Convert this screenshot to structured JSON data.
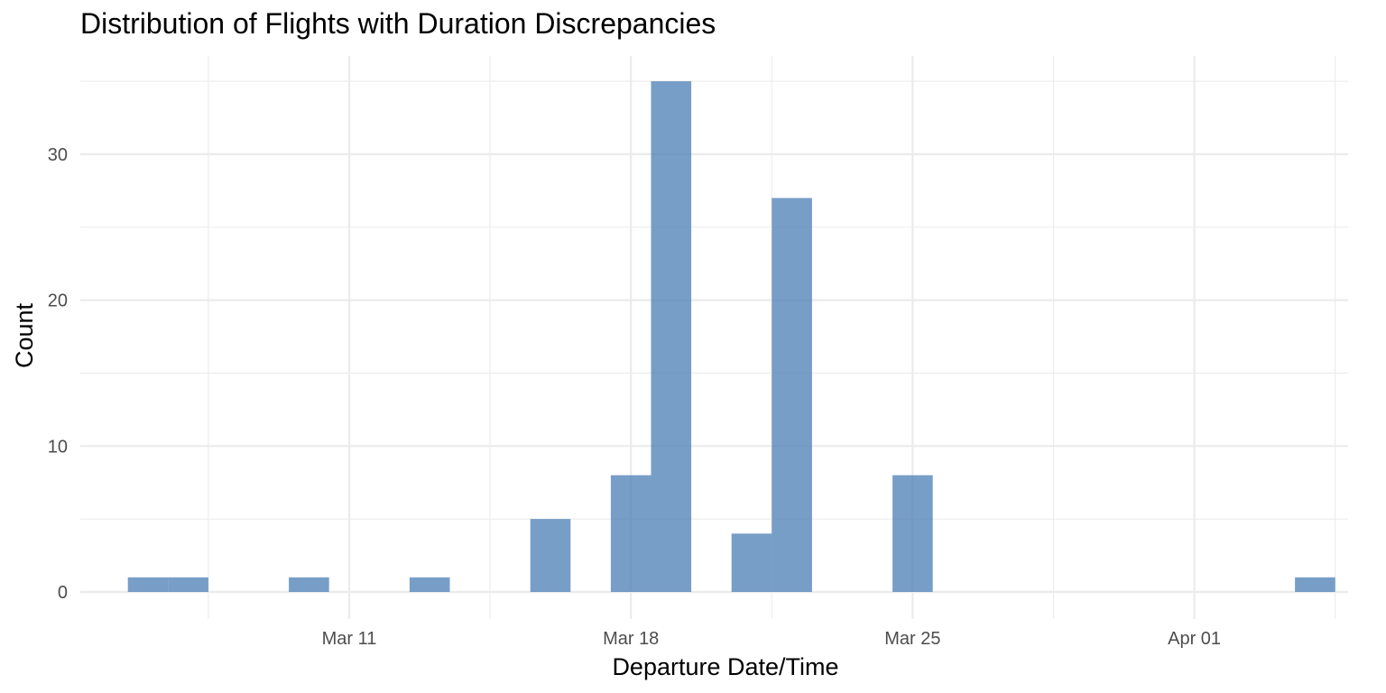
{
  "chart_data": {
    "type": "bar",
    "title": "Distribution of Flights with Duration Discrepancies",
    "xlabel": "Departure Date/Time",
    "ylabel": "Count",
    "bar_color": "#4a7db4",
    "bar_opacity": 0.75,
    "ylim": [
      0,
      35
    ],
    "yticks": [
      0,
      10,
      20,
      30
    ],
    "xticks": [
      "Mar 11",
      "Mar 18",
      "Mar 25",
      "Apr 01"
    ],
    "grid": true,
    "legend": "none",
    "bins": [
      {
        "start": "2024-03-05 12:00",
        "end": "2024-03-06 12:00",
        "count": 1
      },
      {
        "start": "2024-03-06 12:00",
        "end": "2024-03-07 12:00",
        "count": 1
      },
      {
        "start": "2024-03-09 12:00",
        "end": "2024-03-10 12:00",
        "count": 1
      },
      {
        "start": "2024-03-12 12:00",
        "end": "2024-03-13 12:00",
        "count": 1
      },
      {
        "start": "2024-03-15 12:00",
        "end": "2024-03-16 12:00",
        "count": 5
      },
      {
        "start": "2024-03-17 12:00",
        "end": "2024-03-18 12:00",
        "count": 8
      },
      {
        "start": "2024-03-18 12:00",
        "end": "2024-03-19 12:00",
        "count": 35
      },
      {
        "start": "2024-03-20 12:00",
        "end": "2024-03-21 12:00",
        "count": 4
      },
      {
        "start": "2024-03-21 12:00",
        "end": "2024-03-22 12:00",
        "count": 27
      },
      {
        "start": "2024-03-24 12:00",
        "end": "2024-03-25 12:00",
        "count": 8
      },
      {
        "start": "2024-04-03 12:00",
        "end": "2024-04-04 12:00",
        "count": 1
      }
    ]
  }
}
